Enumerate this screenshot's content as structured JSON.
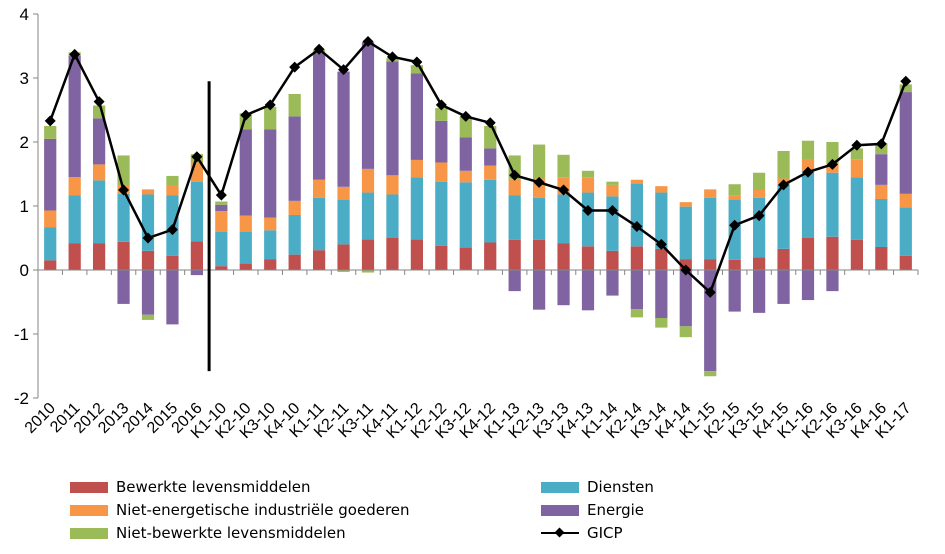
{
  "chart_data": {
    "type": "bar",
    "stacked": true,
    "ylim": [
      -2,
      4
    ],
    "yticks": [
      -2,
      -1,
      0,
      1,
      2,
      3,
      4
    ],
    "categories": [
      "2010",
      "2011",
      "2012",
      "2013",
      "2014",
      "2015",
      "2016",
      "K1-10",
      "K2-10",
      "K3-10",
      "K4-10",
      "K1-11",
      "K2-11",
      "K3-11",
      "K4-11",
      "K1-12",
      "K2-12",
      "K3-12",
      "K4-12",
      "K1-13",
      "K2-13",
      "K3-13",
      "K4-13",
      "K1-14",
      "K2-14",
      "K3-14",
      "K4-14",
      "K1-15",
      "K2-15",
      "K3-15",
      "K4-15",
      "K1-16",
      "K2-16",
      "K3-16",
      "K4-16",
      "K1-17"
    ],
    "separator_after_index": 6,
    "series": [
      {
        "name": "Bewerkte levensmiddelen",
        "color": "#c0504d",
        "values": [
          0.15,
          0.42,
          0.42,
          0.44,
          0.3,
          0.22,
          0.45,
          0.06,
          0.1,
          0.17,
          0.24,
          0.31,
          0.4,
          0.48,
          0.5,
          0.48,
          0.38,
          0.35,
          0.43,
          0.47,
          0.47,
          0.42,
          0.37,
          0.3,
          0.37,
          0.33,
          0.17,
          0.17,
          0.16,
          0.2,
          0.33,
          0.5,
          0.52,
          0.47,
          0.36,
          0.22
        ]
      },
      {
        "name": "Diensten",
        "color": "#4bacc6",
        "values": [
          0.52,
          0.75,
          0.98,
          0.75,
          0.88,
          0.95,
          0.93,
          0.54,
          0.5,
          0.45,
          0.62,
          0.82,
          0.7,
          0.73,
          0.68,
          0.97,
          1.0,
          1.02,
          0.98,
          0.7,
          0.66,
          0.76,
          0.84,
          0.85,
          0.98,
          0.88,
          0.82,
          0.96,
          0.94,
          0.93,
          1.0,
          1.05,
          1.0,
          0.98,
          0.75,
          0.76
        ]
      },
      {
        "name": "Niet-energetische industriële goederen",
        "color": "#f79646",
        "values": [
          0.26,
          0.28,
          0.25,
          0.13,
          0.08,
          0.15,
          0.3,
          0.32,
          0.25,
          0.2,
          0.22,
          0.28,
          0.2,
          0.37,
          0.3,
          0.27,
          0.3,
          0.18,
          0.22,
          0.24,
          0.3,
          0.27,
          0.24,
          0.18,
          0.06,
          0.1,
          0.07,
          0.13,
          0.07,
          0.12,
          0.1,
          0.17,
          0.15,
          0.28,
          0.22,
          0.21
        ]
      },
      {
        "name": "Energie",
        "color": "#8064a2",
        "values": [
          1.12,
          1.9,
          0.72,
          -0.53,
          -0.7,
          -0.85,
          -0.08,
          0.1,
          1.35,
          1.38,
          1.32,
          1.98,
          1.8,
          1.98,
          1.78,
          1.35,
          0.65,
          0.52,
          0.27,
          -0.33,
          -0.62,
          -0.55,
          -0.63,
          -0.4,
          -0.61,
          -0.75,
          -0.88,
          -1.58,
          -0.65,
          -0.67,
          -0.53,
          -0.47,
          -0.33,
          0.0,
          0.48,
          1.59
        ]
      },
      {
        "name": "Niet-bewerkte levensmiddelen",
        "color": "#9bbb59",
        "values": [
          0.2,
          0.05,
          0.2,
          0.47,
          -0.08,
          0.15,
          0.13,
          0.05,
          0.25,
          0.35,
          0.35,
          0.05,
          -0.03,
          -0.04,
          0.05,
          0.13,
          0.2,
          0.33,
          0.35,
          0.38,
          0.53,
          0.35,
          0.1,
          0.05,
          -0.13,
          -0.15,
          -0.17,
          -0.08,
          0.17,
          0.27,
          0.43,
          0.3,
          0.33,
          0.17,
          0.17,
          0.12
        ]
      }
    ],
    "line": {
      "name": "GICP",
      "color": "#000000",
      "values": [
        2.33,
        3.37,
        2.63,
        1.25,
        0.5,
        0.63,
        1.77,
        1.17,
        2.42,
        2.58,
        3.17,
        3.45,
        3.13,
        3.57,
        3.33,
        3.25,
        2.58,
        2.4,
        2.3,
        1.48,
        1.37,
        1.25,
        0.93,
        0.93,
        0.68,
        0.4,
        0.0,
        -0.35,
        0.7,
        0.85,
        1.33,
        1.53,
        1.65,
        1.95,
        1.97,
        2.95
      ]
    },
    "legend": [
      {
        "label": "Bewerkte levensmiddelen",
        "kind": "box",
        "color": "#c0504d"
      },
      {
        "label": "Niet-energetische industriële goederen",
        "kind": "box",
        "color": "#f79646"
      },
      {
        "label": "Niet-bewerkte levensmiddelen",
        "kind": "box",
        "color": "#9bbb59"
      },
      {
        "label": "Diensten",
        "kind": "box",
        "color": "#4bacc6"
      },
      {
        "label": "Energie",
        "kind": "box",
        "color": "#8064a2"
      },
      {
        "label": "GICP",
        "kind": "line",
        "color": "#000000"
      }
    ],
    "legend_position": "bottom",
    "grid": false
  }
}
